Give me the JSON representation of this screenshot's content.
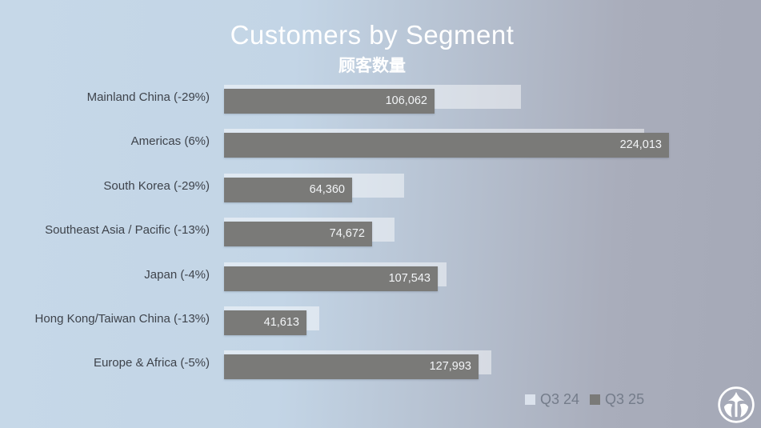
{
  "title": "Customers by Segment",
  "subtitle": "顾客数量",
  "chart_data": {
    "type": "bar",
    "orientation": "horizontal",
    "title": "Customers by Segment",
    "subtitle": "顾客数量",
    "categories": [
      "Mainland China (-29%)",
      "Americas (6%)",
      "South Korea (-29%)",
      "Southeast Asia / Pacific (-13%)",
      "Japan (-4%)",
      "Hong Kong/Taiwan China (-13%)",
      "Europe & Africa (-5%)"
    ],
    "pct_change": [
      "-29%",
      "6%",
      "-29%",
      "-13%",
      "-4%",
      "-13%",
      "-5%"
    ],
    "series": [
      {
        "name": "Q3 24",
        "color": "#dbe2ec",
        "values_estimated_from_pct_change": true,
        "values": [
          149383,
          211333,
          90648,
          85830,
          112024,
          47831,
          134730
        ],
        "data_labels_shown": false
      },
      {
        "name": "Q3 25",
        "color": "#7a7a78",
        "values": [
          106062,
          224013,
          64360,
          74672,
          107543,
          41613,
          127993
        ],
        "data_labels": [
          "106,062",
          "224,013",
          "64,360",
          "74,672",
          "107,543",
          "41,613",
          "127,993"
        ],
        "data_labels_shown": true
      }
    ],
    "xlim": [
      0,
      235000
    ],
    "grid": false,
    "axis_shown": false,
    "legend_position": "bottom-right"
  },
  "legend": {
    "items": [
      {
        "label": "Q3 24",
        "color": "#dbe2ec"
      },
      {
        "label": "Q3 25",
        "color": "#7a7a78"
      }
    ]
  },
  "footer": {
    "logo_icon": "fountain-emblem-logo-icon"
  },
  "colors": {
    "background_left": "#c6d8e8",
    "background_right": "#a5a9b7",
    "title_text": "#ffffff",
    "category_text": "#3e434b",
    "value_label_text": "#f3f5f7",
    "legend_text": "#747c8a",
    "bar_q3_24": "#dbe2ec",
    "bar_q3_25": "#7a7a78"
  }
}
